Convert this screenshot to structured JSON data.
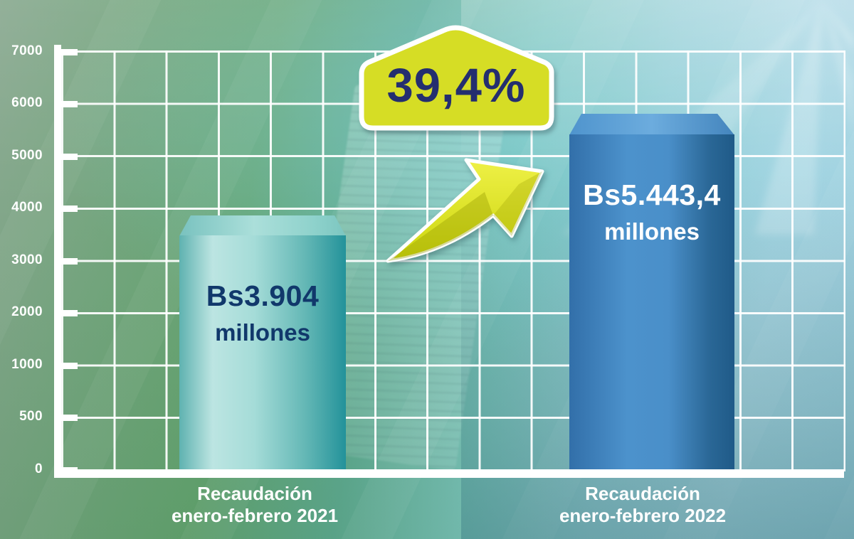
{
  "chart_data": {
    "type": "bar",
    "title": "",
    "y_axis": {
      "tick_labels": [
        "7000",
        "6000",
        "5000",
        "4000",
        "3000",
        "2000",
        "1000",
        "500",
        "0"
      ],
      "range": [
        0,
        7000
      ]
    },
    "grid": true,
    "legend_position": "none",
    "bars": [
      {
        "category_line1": "Recaudación",
        "category_line2": "enero-febrero 2021",
        "value": 3904,
        "value_label": "Bs3.904",
        "value_sublabel": "millones",
        "color": "#6fbdbb"
      },
      {
        "category_line1": "Recaudación",
        "category_line2": "enero-febrero 2022",
        "value": 5443.4,
        "value_label": "Bs5.443,4",
        "value_sublabel": "millones",
        "color": "#3d86c4"
      }
    ],
    "annotations": {
      "growth_badge_label": "39,4%",
      "arrow_icon": "up-right-trend-arrow"
    }
  },
  "colors": {
    "badge_fill": "#d6dd25",
    "badge_text": "#242e6f",
    "arrow_fill": "#e2e418",
    "bar1_text": "#11386b",
    "bar2_text": "#ffffff",
    "axis_and_grid": "#ffffff"
  }
}
